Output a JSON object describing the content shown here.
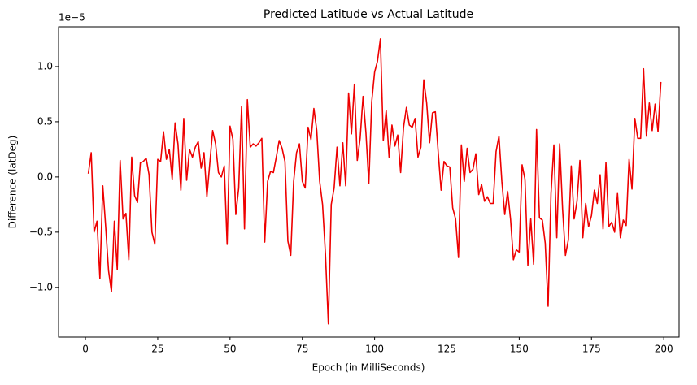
{
  "chart_data": {
    "type": "line",
    "title": "Predicted Latitude vs Actual Latitude",
    "x_label": "Epoch (in MilliSeconds)",
    "y_label": "Difference (latDeg)",
    "y_offset_label": "1e−5",
    "x": [
      1,
      2,
      3,
      4,
      5,
      6,
      7,
      8,
      9,
      10,
      11,
      12,
      13,
      14,
      15,
      16,
      17,
      18,
      19,
      20,
      21,
      22,
      23,
      24,
      25,
      26,
      27,
      28,
      29,
      30,
      31,
      32,
      33,
      34,
      35,
      36,
      37,
      38,
      39,
      40,
      41,
      42,
      43,
      44,
      45,
      46,
      47,
      48,
      49,
      50,
      51,
      52,
      53,
      54,
      55,
      56,
      57,
      58,
      59,
      60,
      61,
      62,
      63,
      64,
      65,
      66,
      67,
      68,
      69,
      70,
      71,
      72,
      73,
      74,
      75,
      76,
      77,
      78,
      79,
      80,
      81,
      82,
      83,
      84,
      85,
      86,
      87,
      88,
      89,
      90,
      91,
      92,
      93,
      94,
      95,
      96,
      97,
      98,
      99,
      100,
      101,
      102,
      103,
      104,
      105,
      106,
      107,
      108,
      109,
      110,
      111,
      112,
      113,
      114,
      115,
      116,
      117,
      118,
      119,
      120,
      121,
      122,
      123,
      124,
      125,
      126,
      127,
      128,
      129,
      130,
      131,
      132,
      133,
      134,
      135,
      136,
      137,
      138,
      139,
      140,
      141,
      142,
      143,
      144,
      145,
      146,
      147,
      148,
      149,
      150,
      151,
      152,
      153,
      154,
      155,
      156,
      157,
      158,
      159,
      160,
      161,
      162,
      163,
      164,
      165,
      166,
      167,
      168,
      169,
      170,
      171,
      172,
      173,
      174,
      175,
      176,
      177,
      178,
      179,
      180,
      181,
      182,
      183,
      184,
      185,
      186,
      187,
      188,
      189,
      190,
      191,
      192,
      193,
      194,
      195,
      196,
      197,
      198,
      199
    ],
    "series": [
      {
        "name": "Difference",
        "color": "#ee0000",
        "values": [
          0.03,
          0.22,
          -0.5,
          -0.4,
          -0.92,
          -0.08,
          -0.45,
          -0.85,
          -1.04,
          -0.4,
          -0.84,
          0.15,
          -0.38,
          -0.33,
          -0.75,
          0.18,
          -0.17,
          -0.23,
          0.13,
          0.14,
          0.17,
          0.02,
          -0.5,
          -0.61,
          0.16,
          0.14,
          0.41,
          0.16,
          0.25,
          -0.02,
          0.49,
          0.3,
          -0.12,
          0.53,
          -0.03,
          0.25,
          0.18,
          0.27,
          0.32,
          0.08,
          0.22,
          -0.18,
          0.12,
          0.42,
          0.3,
          0.04,
          0.0,
          0.1,
          -0.61,
          0.46,
          0.34,
          -0.34,
          -0.1,
          0.64,
          -0.47,
          0.7,
          0.27,
          0.3,
          0.28,
          0.31,
          0.35,
          -0.59,
          -0.04,
          0.05,
          0.04,
          0.18,
          0.33,
          0.26,
          0.14,
          -0.58,
          -0.71,
          -0.04,
          0.22,
          0.3,
          -0.04,
          -0.1,
          0.45,
          0.34,
          0.62,
          0.42,
          -0.04,
          -0.25,
          -0.7,
          -1.33,
          -0.25,
          -0.1,
          0.27,
          -0.08,
          0.31,
          -0.08,
          0.76,
          0.39,
          0.84,
          0.15,
          0.35,
          0.73,
          0.4,
          -0.06,
          0.68,
          0.95,
          1.05,
          1.25,
          0.33,
          0.6,
          0.18,
          0.47,
          0.28,
          0.38,
          0.04,
          0.45,
          0.63,
          0.47,
          0.45,
          0.53,
          0.18,
          0.27,
          0.88,
          0.67,
          0.31,
          0.58,
          0.59,
          0.22,
          -0.12,
          0.14,
          0.1,
          0.09,
          -0.28,
          -0.38,
          -0.73,
          0.29,
          -0.04,
          0.26,
          0.04,
          0.07,
          0.21,
          -0.16,
          -0.07,
          -0.22,
          -0.18,
          -0.24,
          -0.24,
          0.23,
          0.37,
          -0.04,
          -0.34,
          -0.13,
          -0.38,
          -0.75,
          -0.66,
          -0.68,
          0.11,
          -0.02,
          -0.8,
          -0.38,
          -0.79,
          0.43,
          -0.37,
          -0.39,
          -0.6,
          -1.17,
          -0.15,
          0.29,
          -0.55,
          0.3,
          -0.29,
          -0.71,
          -0.57,
          0.1,
          -0.38,
          -0.22,
          0.15,
          -0.55,
          -0.24,
          -0.45,
          -0.35,
          -0.12,
          -0.24,
          0.02,
          -0.47,
          0.13,
          -0.45,
          -0.41,
          -0.5,
          -0.15,
          -0.55,
          -0.39,
          -0.44,
          0.16,
          -0.11,
          0.53,
          0.35,
          0.35,
          0.98,
          0.37,
          0.67,
          0.42,
          0.66,
          0.41,
          0.86
        ]
      }
    ],
    "xlim": [
      -9.3,
      205.3
    ],
    "xticks": [
      0,
      25,
      50,
      75,
      100,
      125,
      150,
      175,
      200
    ],
    "ylim": [
      -1.45,
      1.36
    ],
    "yticks": [
      {
        "value": -1,
        "label": "−1.0"
      },
      {
        "value": -0.5,
        "label": "−0.5"
      },
      {
        "value": 0,
        "label": "0.0"
      },
      0.5,
      {
        "value": 1,
        "label": "1.0"
      }
    ]
  }
}
